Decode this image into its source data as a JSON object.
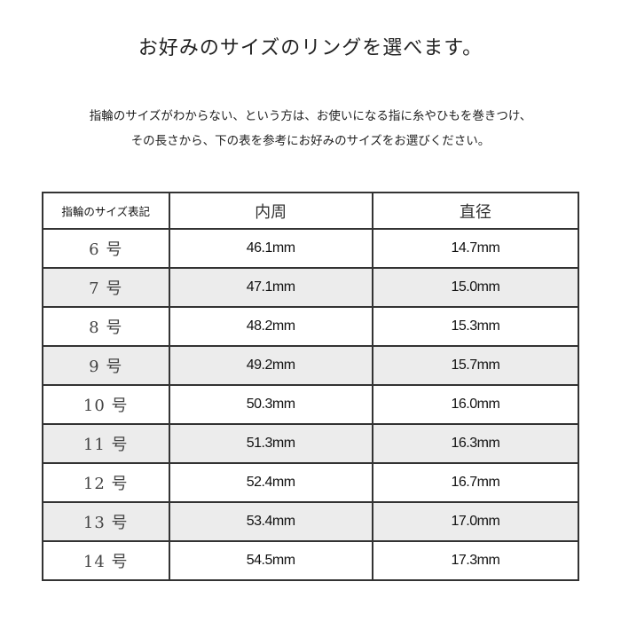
{
  "title": "お好みのサイズのリングを選べます。",
  "description": [
    "指輪のサイズがわからない、という方は、お使いになる指に糸やひもを巻きつけ、",
    "その長さから、下の表を参考にお好みのサイズをお選びください。"
  ],
  "table": {
    "headers": [
      "指輪のサイズ表記",
      "内周",
      "直径"
    ],
    "rows": [
      [
        "6 号",
        "46.1mm",
        "14.7mm"
      ],
      [
        "7 号",
        "47.1mm",
        "15.0mm"
      ],
      [
        "8 号",
        "48.2mm",
        "15.3mm"
      ],
      [
        "9 号",
        "49.2mm",
        "15.7mm"
      ],
      [
        "10 号",
        "50.3mm",
        "16.0mm"
      ],
      [
        "11 号",
        "51.3mm",
        "16.3mm"
      ],
      [
        "12 号",
        "52.4mm",
        "16.7mm"
      ],
      [
        "13 号",
        "53.4mm",
        "17.0mm"
      ],
      [
        "14 号",
        "54.5mm",
        "17.3mm"
      ]
    ],
    "shaded_row_color": "#ececec"
  }
}
